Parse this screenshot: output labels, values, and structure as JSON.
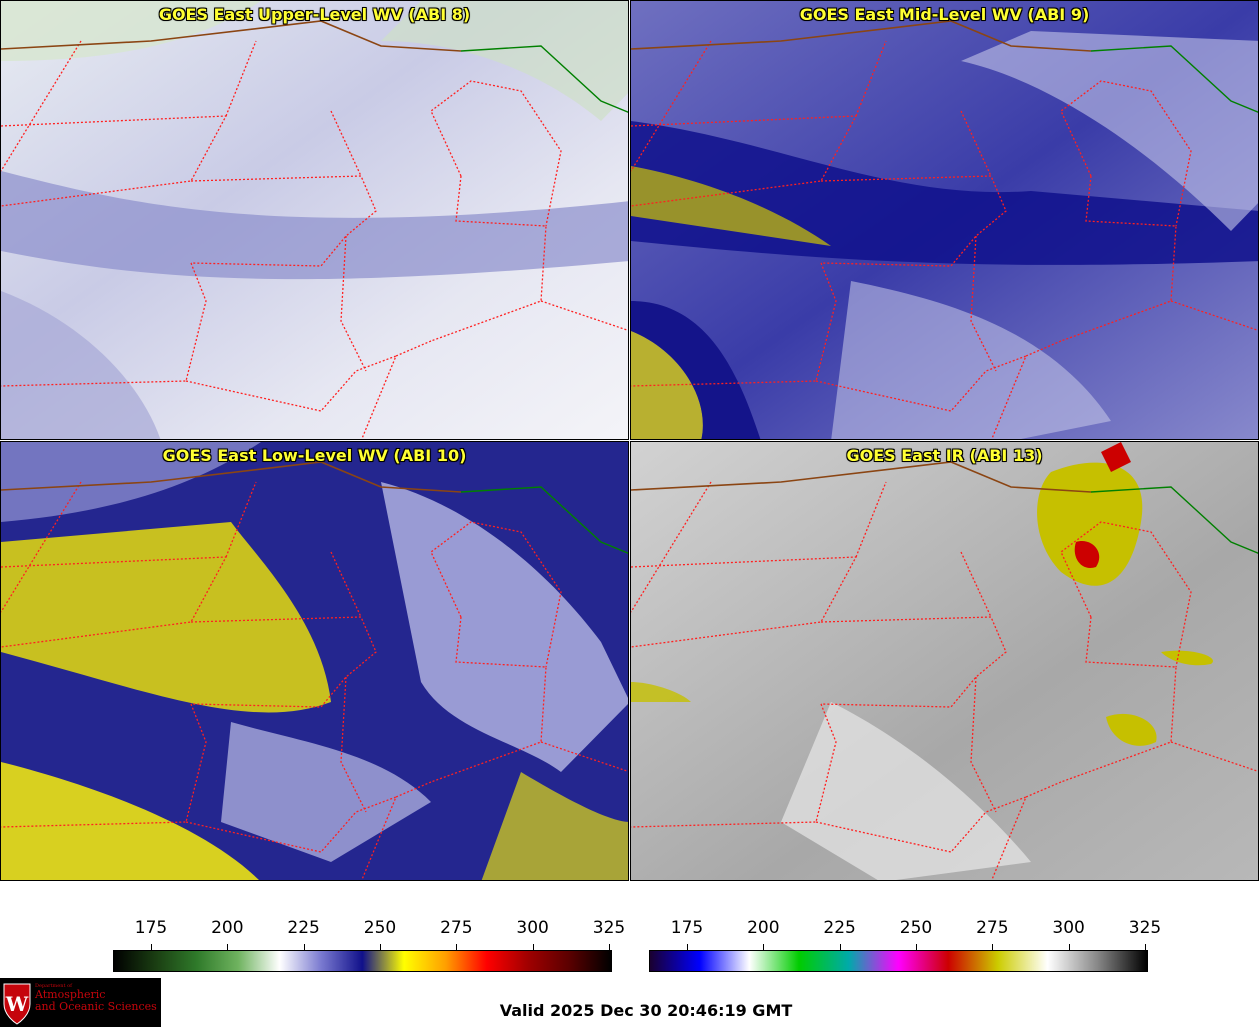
{
  "panels": [
    {
      "title": "GOES East Upper-Level WV (ABI 8)",
      "imagery": "upper-level-water-vapor"
    },
    {
      "title": "GOES East Mid-Level WV (ABI 9)",
      "imagery": "mid-level-water-vapor"
    },
    {
      "title": "GOES East Low-Level WV (ABI 10)",
      "imagery": "low-level-water-vapor"
    },
    {
      "title": "GOES East IR (ABI 13)",
      "imagery": "infrared"
    }
  ],
  "colorbars": {
    "wv": {
      "ticks": [
        "175",
        "200",
        "225",
        "250",
        "275",
        "300",
        "325"
      ],
      "colors": [
        "#000000",
        "#1a3d12",
        "#2f7a2a",
        "#6fb35f",
        "#ffffff",
        "#7a7ad0",
        "#10108a",
        "#ffff00",
        "#ffa000",
        "#ff0000",
        "#a00000",
        "#5a0000",
        "#000000"
      ]
    },
    "ir": {
      "ticks": [
        "175",
        "200",
        "225",
        "250",
        "275",
        "300",
        "325"
      ],
      "colors": [
        "#1a0030",
        "#0000ff",
        "#ffffff",
        "#00cc00",
        "#00aaaa",
        "#ff00ff",
        "#cc0000",
        "#cccc00",
        "#ffffff",
        "#888888",
        "#000000"
      ]
    }
  },
  "logo": {
    "dept": "Department of",
    "line1": "Atmospheric",
    "line2": "and Oceanic Sciences",
    "emblem": "W-crest-logo"
  },
  "valid_time": "Valid 2025 Dec 30 20:46:19 GMT",
  "colors": {
    "title_text": "#ffff33",
    "state_border": "#ff2020",
    "intl_border": "#8b4513",
    "coast_border": "#008000"
  }
}
